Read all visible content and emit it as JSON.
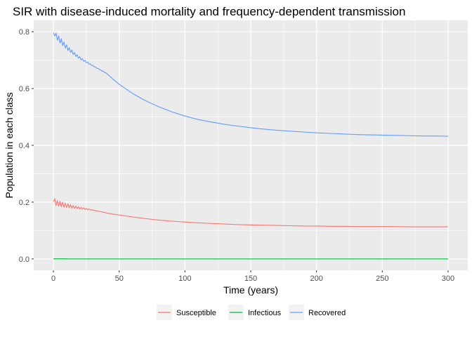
{
  "chart_data": {
    "type": "line",
    "title": "SIR with disease-induced mortality and frequency-dependent transmission",
    "xlabel": "Time (years)",
    "ylabel": "Population in each class",
    "xlim": [
      -15,
      315
    ],
    "ylim": [
      -0.04,
      0.84
    ],
    "x_ticks": [
      0,
      50,
      100,
      150,
      200,
      250,
      300
    ],
    "y_ticks": [
      0.0,
      0.2,
      0.4,
      0.6,
      0.8
    ],
    "x_tick_labels": [
      "0",
      "50",
      "100",
      "150",
      "200",
      "250",
      "300"
    ],
    "y_tick_labels": [
      "0.0",
      "0.2",
      "0.4",
      "0.6",
      "0.8"
    ],
    "grid": true,
    "legend_position": "bottom",
    "background": "#ebebeb",
    "series": [
      {
        "name": "Susceptible",
        "color": "#F8766D",
        "x": [
          0,
          1,
          2,
          3,
          4,
          5,
          6,
          7,
          8,
          9,
          10,
          11,
          12,
          13,
          14,
          15,
          16,
          17,
          18,
          19,
          20,
          21,
          22,
          23,
          24,
          25,
          26,
          27,
          28,
          29,
          30,
          31,
          32,
          33,
          34,
          35,
          36,
          37,
          38,
          39,
          40,
          45,
          50,
          60,
          70,
          80,
          90,
          100,
          110,
          120,
          130,
          140,
          150,
          160,
          170,
          180,
          190,
          200,
          210,
          220,
          230,
          240,
          250,
          260,
          270,
          280,
          290,
          300
        ],
        "values": [
          0.202,
          0.212,
          0.188,
          0.205,
          0.186,
          0.203,
          0.184,
          0.2,
          0.182,
          0.197,
          0.181,
          0.194,
          0.18,
          0.191,
          0.179,
          0.188,
          0.178,
          0.186,
          0.177,
          0.184,
          0.176,
          0.182,
          0.175,
          0.18,
          0.174,
          0.178,
          0.173,
          0.176,
          0.172,
          0.174,
          0.171,
          0.172,
          0.169,
          0.17,
          0.167,
          0.168,
          0.166,
          0.166,
          0.164,
          0.164,
          0.162,
          0.158,
          0.155,
          0.148,
          0.142,
          0.137,
          0.133,
          0.13,
          0.127,
          0.125,
          0.123,
          0.121,
          0.12,
          0.119,
          0.118,
          0.117,
          0.116,
          0.116,
          0.115,
          0.115,
          0.114,
          0.114,
          0.114,
          0.114,
          0.113,
          0.113,
          0.113,
          0.113
        ]
      },
      {
        "name": "Infectious",
        "color": "#00BA38",
        "x": [
          0,
          1,
          2,
          3,
          4,
          5,
          6,
          7,
          8,
          9,
          10,
          15,
          20,
          30,
          50,
          100,
          150,
          200,
          250,
          300
        ],
        "values": [
          0.0,
          0.001,
          0.0,
          0.001,
          0.0,
          0.001,
          0.0,
          0.001,
          0.0,
          0.001,
          0.0,
          0.0,
          0.0,
          0.0,
          0.0,
          0.0,
          0.0,
          0.0,
          0.0,
          0.0
        ]
      },
      {
        "name": "Recovered",
        "color": "#619CFF",
        "x": [
          0,
          1,
          2,
          3,
          4,
          5,
          6,
          7,
          8,
          9,
          10,
          11,
          12,
          13,
          14,
          15,
          16,
          17,
          18,
          19,
          20,
          21,
          22,
          23,
          24,
          25,
          26,
          27,
          28,
          29,
          30,
          31,
          32,
          33,
          34,
          35,
          36,
          37,
          38,
          39,
          40,
          45,
          50,
          60,
          70,
          80,
          90,
          100,
          110,
          120,
          130,
          140,
          150,
          160,
          170,
          180,
          190,
          200,
          210,
          220,
          230,
          240,
          250,
          260,
          270,
          280,
          290,
          300
        ],
        "values": [
          0.797,
          0.785,
          0.795,
          0.77,
          0.785,
          0.76,
          0.775,
          0.751,
          0.764,
          0.742,
          0.754,
          0.734,
          0.744,
          0.727,
          0.735,
          0.72,
          0.727,
          0.713,
          0.719,
          0.707,
          0.712,
          0.701,
          0.705,
          0.696,
          0.699,
          0.691,
          0.693,
          0.686,
          0.687,
          0.681,
          0.682,
          0.676,
          0.676,
          0.671,
          0.671,
          0.666,
          0.666,
          0.661,
          0.661,
          0.656,
          0.655,
          0.634,
          0.615,
          0.583,
          0.557,
          0.536,
          0.518,
          0.503,
          0.491,
          0.482,
          0.474,
          0.468,
          0.462,
          0.457,
          0.453,
          0.45,
          0.447,
          0.444,
          0.442,
          0.44,
          0.438,
          0.437,
          0.436,
          0.435,
          0.434,
          0.433,
          0.433,
          0.432
        ]
      }
    ]
  }
}
